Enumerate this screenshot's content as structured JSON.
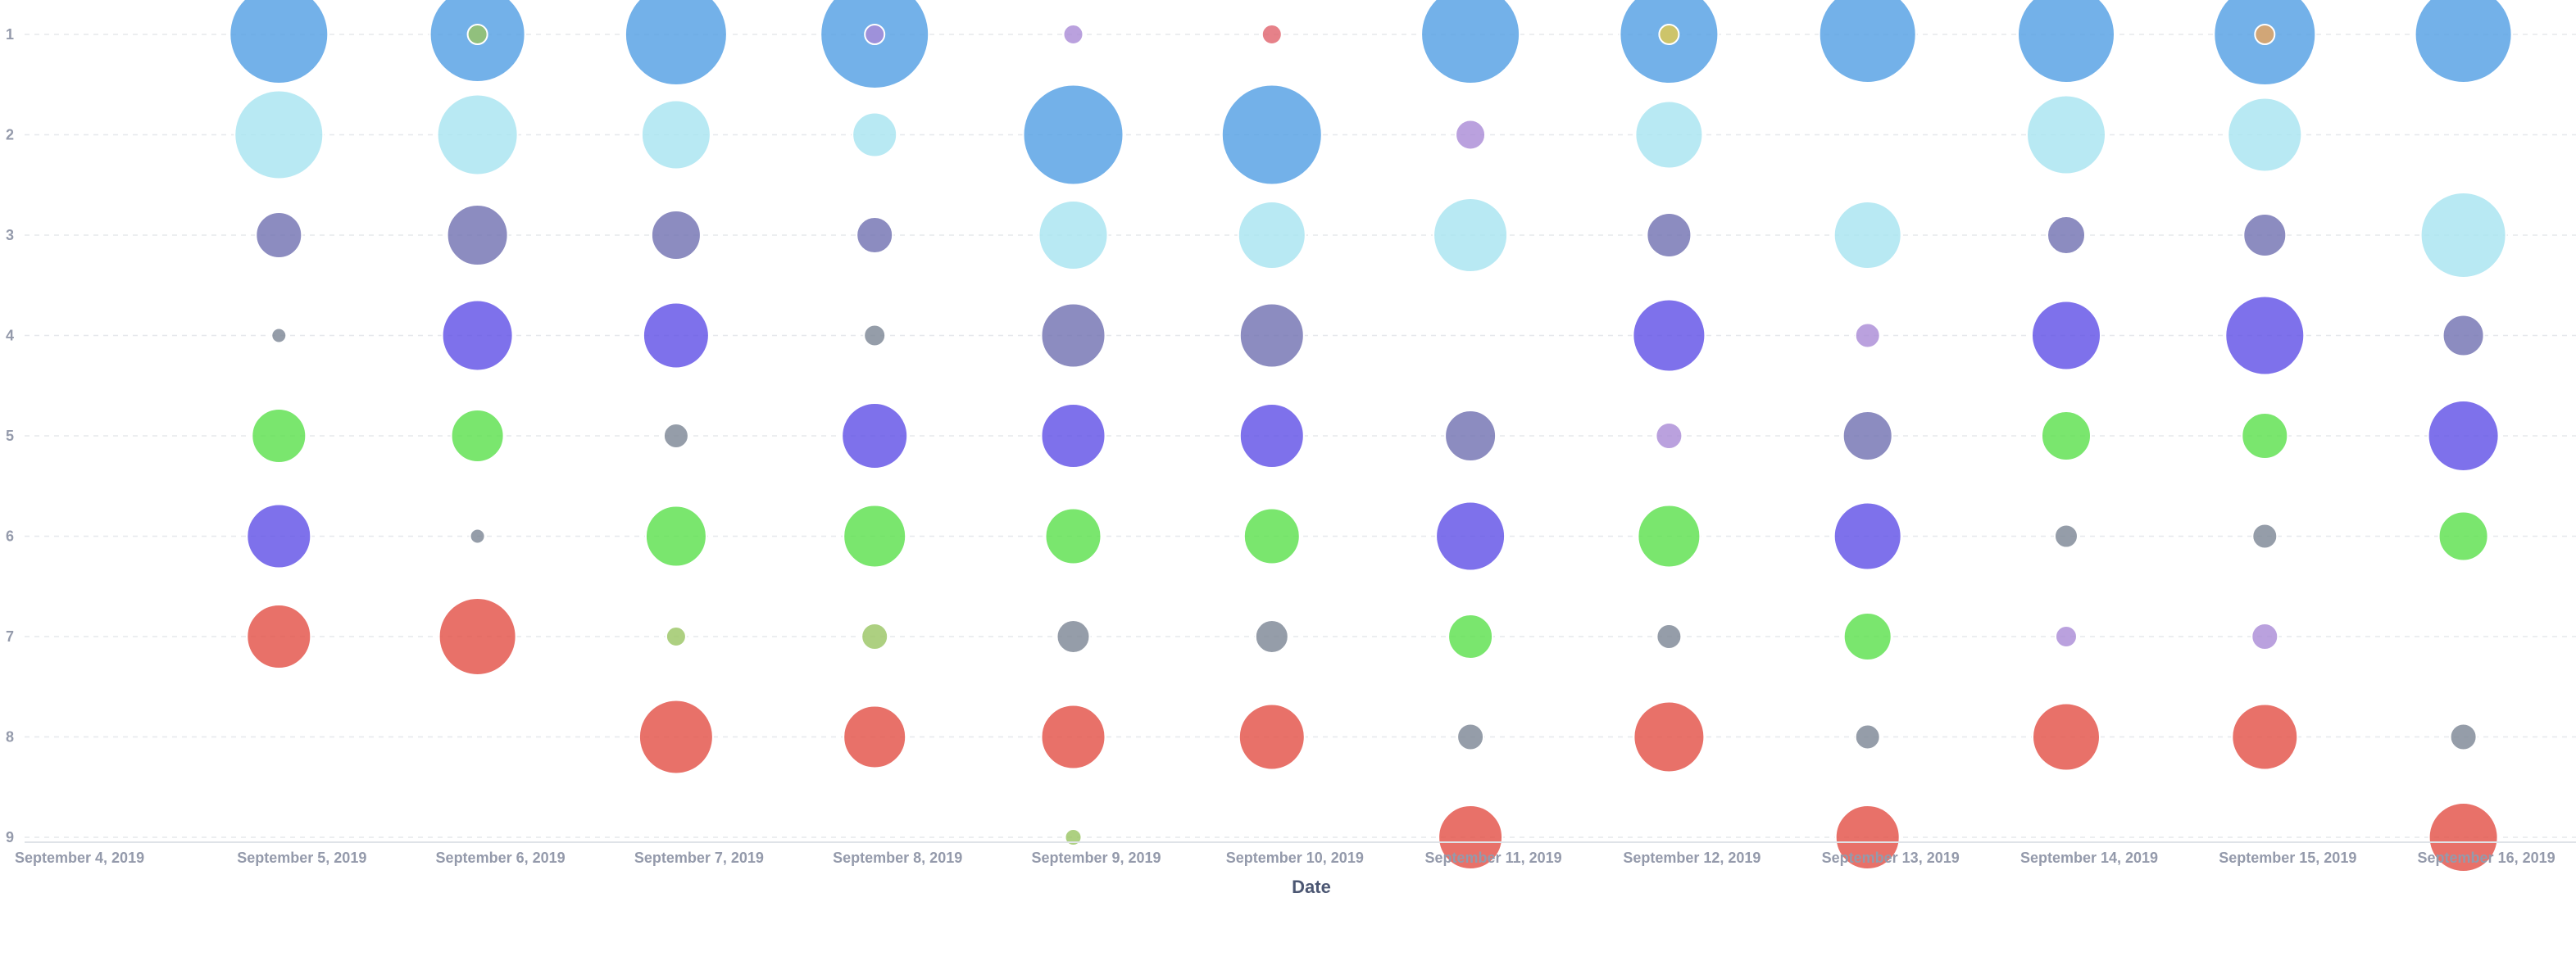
{
  "chart_data": {
    "type": "scatter",
    "subtype": "bubble",
    "xlabel": "Date",
    "ylabel": "",
    "x_categories": [
      "September 4, 2019",
      "September 5, 2019",
      "September 6, 2019",
      "September 7, 2019",
      "September 8, 2019",
      "September 9, 2019",
      "September 10, 2019",
      "September 11, 2019",
      "September 12, 2019",
      "September 13, 2019",
      "September 14, 2019",
      "September 15, 2019",
      "September 16, 2019"
    ],
    "y_ticks": [
      "1",
      "2",
      "3",
      "4",
      "5",
      "6",
      "7",
      "8",
      "9"
    ],
    "ylim": [
      1,
      9
    ],
    "grid": true,
    "colors": {
      "blue": "#509ee3",
      "lightblue": "#a6e3f0",
      "slate": "#6f6fb0",
      "purple": "#5e4ee6",
      "green": "#59e04a",
      "red": "#e24d44",
      "gray": "#7b8494",
      "olive": "#99c462",
      "lilac": "#a98ad6",
      "pink": "#e0616c",
      "yellow": "#e3c94a",
      "orange": "#e8a45a"
    },
    "points": [
      {
        "x": 1,
        "y": 1,
        "size": 60,
        "color": "blue"
      },
      {
        "x": 1,
        "y": 2,
        "size": 54,
        "color": "lightblue"
      },
      {
        "x": 1,
        "y": 3,
        "size": 28,
        "color": "slate"
      },
      {
        "x": 1,
        "y": 4,
        "size": 9,
        "color": "gray"
      },
      {
        "x": 1,
        "y": 5,
        "size": 33,
        "color": "green"
      },
      {
        "x": 1,
        "y": 6,
        "size": 39,
        "color": "purple"
      },
      {
        "x": 1,
        "y": 7,
        "size": 39,
        "color": "red"
      },
      {
        "x": 2,
        "y": 1,
        "size": 58,
        "color": "blue"
      },
      {
        "x": 2,
        "y": 1,
        "size": 12,
        "color": "olive"
      },
      {
        "x": 2,
        "y": 2,
        "size": 49,
        "color": "lightblue"
      },
      {
        "x": 2,
        "y": 3,
        "size": 37,
        "color": "slate"
      },
      {
        "x": 2,
        "y": 4,
        "size": 43,
        "color": "purple"
      },
      {
        "x": 2,
        "y": 5,
        "size": 32,
        "color": "green"
      },
      {
        "x": 2,
        "y": 6,
        "size": 9,
        "color": "gray"
      },
      {
        "x": 2,
        "y": 7,
        "size": 47,
        "color": "red"
      },
      {
        "x": 3,
        "y": 1,
        "size": 62,
        "color": "blue"
      },
      {
        "x": 3,
        "y": 2,
        "size": 42,
        "color": "lightblue"
      },
      {
        "x": 3,
        "y": 3,
        "size": 30,
        "color": "slate"
      },
      {
        "x": 3,
        "y": 4,
        "size": 40,
        "color": "purple"
      },
      {
        "x": 3,
        "y": 5,
        "size": 15,
        "color": "gray"
      },
      {
        "x": 3,
        "y": 6,
        "size": 37,
        "color": "green"
      },
      {
        "x": 3,
        "y": 7,
        "size": 12,
        "color": "olive"
      },
      {
        "x": 3,
        "y": 8,
        "size": 45,
        "color": "red"
      },
      {
        "x": 4,
        "y": 1,
        "size": 66,
        "color": "blue"
      },
      {
        "x": 4,
        "y": 1,
        "size": 12,
        "color": "lilac"
      },
      {
        "x": 4,
        "y": 2,
        "size": 27,
        "color": "lightblue"
      },
      {
        "x": 4,
        "y": 3,
        "size": 22,
        "color": "slate"
      },
      {
        "x": 4,
        "y": 4,
        "size": 13,
        "color": "gray"
      },
      {
        "x": 4,
        "y": 5,
        "size": 40,
        "color": "purple"
      },
      {
        "x": 4,
        "y": 6,
        "size": 38,
        "color": "green"
      },
      {
        "x": 4,
        "y": 7,
        "size": 16,
        "color": "olive"
      },
      {
        "x": 4,
        "y": 8,
        "size": 38,
        "color": "red"
      },
      {
        "x": 5,
        "y": 1,
        "size": 12,
        "color": "lilac"
      },
      {
        "x": 5,
        "y": 2,
        "size": 61,
        "color": "blue"
      },
      {
        "x": 5,
        "y": 3,
        "size": 42,
        "color": "lightblue"
      },
      {
        "x": 5,
        "y": 4,
        "size": 39,
        "color": "slate"
      },
      {
        "x": 5,
        "y": 5,
        "size": 39,
        "color": "purple"
      },
      {
        "x": 5,
        "y": 6,
        "size": 34,
        "color": "green"
      },
      {
        "x": 5,
        "y": 7,
        "size": 20,
        "color": "gray"
      },
      {
        "x": 5,
        "y": 8,
        "size": 39,
        "color": "red"
      },
      {
        "x": 5,
        "y": 9,
        "size": 10,
        "color": "olive"
      },
      {
        "x": 6,
        "y": 1,
        "size": 12,
        "color": "pink"
      },
      {
        "x": 6,
        "y": 2,
        "size": 61,
        "color": "blue"
      },
      {
        "x": 6,
        "y": 3,
        "size": 41,
        "color": "lightblue"
      },
      {
        "x": 6,
        "y": 4,
        "size": 39,
        "color": "slate"
      },
      {
        "x": 6,
        "y": 5,
        "size": 39,
        "color": "purple"
      },
      {
        "x": 6,
        "y": 6,
        "size": 34,
        "color": "green"
      },
      {
        "x": 6,
        "y": 7,
        "size": 20,
        "color": "gray"
      },
      {
        "x": 6,
        "y": 8,
        "size": 40,
        "color": "red"
      },
      {
        "x": 7,
        "y": 1,
        "size": 60,
        "color": "blue"
      },
      {
        "x": 7,
        "y": 2,
        "size": 18,
        "color": "lilac"
      },
      {
        "x": 7,
        "y": 3,
        "size": 45,
        "color": "lightblue"
      },
      {
        "x": 7,
        "y": 5,
        "size": 31,
        "color": "slate"
      },
      {
        "x": 7,
        "y": 6,
        "size": 42,
        "color": "purple"
      },
      {
        "x": 7,
        "y": 7,
        "size": 27,
        "color": "green"
      },
      {
        "x": 7,
        "y": 8,
        "size": 16,
        "color": "gray"
      },
      {
        "x": 7,
        "y": 9,
        "size": 39,
        "color": "red"
      },
      {
        "x": 8,
        "y": 1,
        "size": 60,
        "color": "blue"
      },
      {
        "x": 8,
        "y": 1,
        "size": 12,
        "color": "yellow"
      },
      {
        "x": 8,
        "y": 2,
        "size": 41,
        "color": "lightblue"
      },
      {
        "x": 8,
        "y": 3,
        "size": 27,
        "color": "slate"
      },
      {
        "x": 8,
        "y": 4,
        "size": 44,
        "color": "purple"
      },
      {
        "x": 8,
        "y": 5,
        "size": 16,
        "color": "lilac"
      },
      {
        "x": 8,
        "y": 6,
        "size": 38,
        "color": "green"
      },
      {
        "x": 8,
        "y": 7,
        "size": 15,
        "color": "gray"
      },
      {
        "x": 8,
        "y": 8,
        "size": 43,
        "color": "red"
      },
      {
        "x": 9,
        "y": 1,
        "size": 59,
        "color": "blue"
      },
      {
        "x": 9,
        "y": 3,
        "size": 41,
        "color": "lightblue"
      },
      {
        "x": 9,
        "y": 4,
        "size": 15,
        "color": "lilac"
      },
      {
        "x": 9,
        "y": 5,
        "size": 30,
        "color": "slate"
      },
      {
        "x": 9,
        "y": 6,
        "size": 41,
        "color": "purple"
      },
      {
        "x": 9,
        "y": 7,
        "size": 29,
        "color": "green"
      },
      {
        "x": 9,
        "y": 8,
        "size": 15,
        "color": "gray"
      },
      {
        "x": 9,
        "y": 9,
        "size": 39,
        "color": "red"
      },
      {
        "x": 10,
        "y": 1,
        "size": 59,
        "color": "blue"
      },
      {
        "x": 10,
        "y": 2,
        "size": 48,
        "color": "lightblue"
      },
      {
        "x": 10,
        "y": 3,
        "size": 23,
        "color": "slate"
      },
      {
        "x": 10,
        "y": 4,
        "size": 42,
        "color": "purple"
      },
      {
        "x": 10,
        "y": 5,
        "size": 30,
        "color": "green"
      },
      {
        "x": 10,
        "y": 6,
        "size": 14,
        "color": "gray"
      },
      {
        "x": 10,
        "y": 7,
        "size": 13,
        "color": "lilac"
      },
      {
        "x": 10,
        "y": 8,
        "size": 41,
        "color": "red"
      },
      {
        "x": 11,
        "y": 1,
        "size": 62,
        "color": "blue"
      },
      {
        "x": 11,
        "y": 1,
        "size": 12,
        "color": "orange"
      },
      {
        "x": 11,
        "y": 2,
        "size": 45,
        "color": "lightblue"
      },
      {
        "x": 11,
        "y": 3,
        "size": 26,
        "color": "slate"
      },
      {
        "x": 11,
        "y": 4,
        "size": 48,
        "color": "purple"
      },
      {
        "x": 11,
        "y": 5,
        "size": 28,
        "color": "green"
      },
      {
        "x": 11,
        "y": 6,
        "size": 15,
        "color": "gray"
      },
      {
        "x": 11,
        "y": 7,
        "size": 16,
        "color": "lilac"
      },
      {
        "x": 11,
        "y": 8,
        "size": 40,
        "color": "red"
      },
      {
        "x": 12,
        "y": 1,
        "size": 59,
        "color": "blue"
      },
      {
        "x": 12,
        "y": 3,
        "size": 52,
        "color": "lightblue"
      },
      {
        "x": 12,
        "y": 4,
        "size": 25,
        "color": "slate"
      },
      {
        "x": 12,
        "y": 5,
        "size": 43,
        "color": "purple"
      },
      {
        "x": 12,
        "y": 6,
        "size": 30,
        "color": "green"
      },
      {
        "x": 12,
        "y": 8,
        "size": 16,
        "color": "gray"
      },
      {
        "x": 12,
        "y": 9,
        "size": 42,
        "color": "red"
      }
    ]
  }
}
